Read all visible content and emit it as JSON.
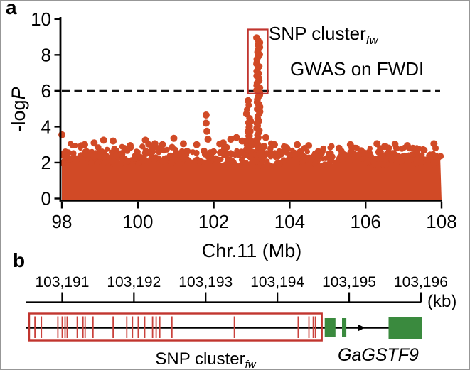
{
  "figure": {
    "panels": {
      "a": {
        "letter": "a",
        "ylabel_main": "-log",
        "ylabel_italic": "P",
        "xlabel": "Chr.11 (Mb)",
        "annotation_snp": {
          "text": "SNP cluster",
          "sub": "fw"
        },
        "annotation_gwas": "GWAS on FWDI"
      },
      "b": {
        "letter": "b",
        "axis_unit": "(kb)",
        "label_snp": {
          "text": "SNP cluster",
          "sub": "fw"
        },
        "label_gene": "GaGSTF9"
      }
    }
  },
  "colors": {
    "point": "#d14a26",
    "band": "#d14a26",
    "highlight_box": "#c1352f",
    "snp_tick": "#ca423c",
    "exon_green": "#3a8a3e",
    "axis": "#000000",
    "dash": "#111111"
  },
  "chart_data": [
    {
      "id": "panel-a",
      "type": "scatter",
      "title": "",
      "xlabel": "Chr.11 (Mb)",
      "ylabel": "-logP",
      "xlim": [
        98,
        108
      ],
      "ylim": [
        0,
        10
      ],
      "xticks": [
        98,
        100,
        102,
        104,
        106,
        108
      ],
      "xtick_labels": [
        "98",
        "100",
        "102",
        "104",
        "106",
        "108"
      ],
      "yticks": [
        0,
        2,
        4,
        6,
        8,
        10
      ],
      "ytick_labels": [
        "0",
        "2",
        "4",
        "6",
        "8",
        "10"
      ],
      "grid": false,
      "significance_threshold": {
        "y": 6,
        "style": "dashed"
      },
      "highlight_box": {
        "x": [
          102.9,
          103.42
        ],
        "y": [
          5.85,
          9.42
        ],
        "label": "SNP cluster fw"
      },
      "annotation_text": "GWAS on FWDI",
      "background_band": {
        "description": "dense genome-wide SNP baseline, -logP 0 to ~2.7 across 98-108 Mb, rendered procedurally",
        "x_range": [
          98,
          108
        ],
        "y_top_range": [
          1.95,
          2.7
        ],
        "seed": 11,
        "edge_dots": 330,
        "upper_dots": 110,
        "sparse_dots": 22
      },
      "peak_columns": [
        {
          "x": 102.9,
          "y_bottom": 2.5,
          "y_top": 5.45,
          "n": 13
        },
        {
          "x": 102.97,
          "y_bottom": 2.4,
          "y_top": 4.3,
          "n": 8
        },
        {
          "x": 103.17,
          "y_bottom": 1.8,
          "y_top": 8.95,
          "n": 55
        },
        {
          "x": 103.28,
          "y_bottom": 2.2,
          "y_top": 2.9,
          "n": 3
        }
      ],
      "scatter_points": [
        [
          98.0,
          3.55
        ],
        [
          98.6,
          3.0
        ],
        [
          98.85,
          3.1
        ],
        [
          99.1,
          3.25
        ],
        [
          99.35,
          3.2
        ],
        [
          99.8,
          2.95
        ],
        [
          100.2,
          3.25
        ],
        [
          100.45,
          3.05
        ],
        [
          100.65,
          3.0
        ],
        [
          100.95,
          3.35
        ],
        [
          101.2,
          3.05
        ],
        [
          101.55,
          3.0
        ],
        [
          101.8,
          4.65
        ],
        [
          101.8,
          4.2
        ],
        [
          101.82,
          3.75
        ],
        [
          101.85,
          3.3
        ],
        [
          102.25,
          3.1
        ],
        [
          102.45,
          3.3
        ],
        [
          102.6,
          3.4
        ],
        [
          102.75,
          3.2
        ],
        [
          103.37,
          3.4
        ],
        [
          103.6,
          3.0
        ],
        [
          103.9,
          2.85
        ],
        [
          104.2,
          3.0
        ],
        [
          104.5,
          2.95
        ],
        [
          105.3,
          2.8
        ],
        [
          105.6,
          3.0
        ],
        [
          106.3,
          3.05
        ],
        [
          106.5,
          2.9
        ],
        [
          107.1,
          2.95
        ],
        [
          107.8,
          3.05
        ]
      ]
    },
    {
      "id": "panel-b",
      "type": "gene-track",
      "axis": {
        "unit": "(kb)",
        "range_kb": [
          103190.5,
          103196.05
        ],
        "ticks_kb": [
          103191,
          103192,
          103193,
          103194,
          103195,
          103196
        ],
        "tick_labels": [
          "103,191",
          "103,192",
          "103,193",
          "103,194",
          "103,195",
          "103,196"
        ]
      },
      "snp_cluster": {
        "label": "SNP cluster fw",
        "box_range_kb": [
          103190.54,
          103194.62
        ],
        "snp_positions_kb": [
          103190.62,
          103190.71,
          103190.94,
          103191.0,
          103191.04,
          103191.07,
          103191.21,
          103191.29,
          103191.32,
          103191.43,
          103191.71,
          103191.9,
          103191.98,
          103192.06,
          103192.15,
          103192.26,
          103192.31,
          103192.36,
          103192.53,
          103193.4,
          103194.29,
          103194.44,
          103194.5,
          103194.53
        ]
      },
      "gene": {
        "name": "GaGSTF9",
        "strand": "forward",
        "line_range_kb": [
          103190.5,
          103196.02
        ],
        "arrow_kb": 103195.22,
        "exons_kb": [
          [
            103194.66,
            103194.81
          ],
          [
            103194.9,
            103194.96
          ],
          [
            103195.55,
            103196.02
          ]
        ]
      }
    }
  ]
}
